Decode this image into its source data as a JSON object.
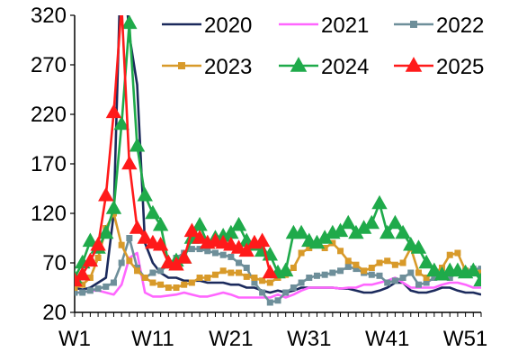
{
  "chart_data": {
    "type": "line",
    "title": "",
    "xlabel": "",
    "ylabel": "",
    "ylim": [
      20,
      320
    ],
    "yticks": [
      20,
      70,
      120,
      170,
      220,
      270,
      320
    ],
    "xticks": [
      "W1",
      "W11",
      "W21",
      "W31",
      "W41",
      "W51"
    ],
    "xtick_weeks": [
      1,
      11,
      21,
      31,
      41,
      51
    ],
    "week_range": [
      1,
      53
    ],
    "grid": false,
    "legend_position": "top-right",
    "series": [
      {
        "name": "2020",
        "color": "#1b2a5c",
        "marker": "none",
        "x": [
          1,
          2,
          3,
          4,
          5,
          6,
          7,
          8,
          9,
          10,
          11,
          12,
          13,
          14,
          15,
          16,
          17,
          18,
          19,
          20,
          21,
          22,
          23,
          24,
          25,
          26,
          27,
          28,
          29,
          30,
          31,
          32,
          33,
          34,
          35,
          36,
          37,
          38,
          39,
          40,
          41,
          42,
          43,
          44,
          45,
          46,
          47,
          48,
          49,
          50,
          51,
          52,
          53
        ],
        "y": [
          45,
          43,
          45,
          50,
          55,
          120,
          400,
          300,
          250,
          90,
          70,
          60,
          55,
          55,
          52,
          52,
          52,
          50,
          50,
          50,
          48,
          48,
          45,
          45,
          42,
          40,
          42,
          40,
          42,
          45,
          45,
          45,
          45,
          45,
          44,
          44,
          42,
          40,
          40,
          42,
          45,
          50,
          50,
          42,
          40,
          40,
          42,
          45,
          45,
          42,
          40,
          40,
          38
        ]
      },
      {
        "name": "2021",
        "color": "#ff66ff",
        "marker": "none",
        "x": [
          1,
          2,
          3,
          4,
          5,
          6,
          7,
          8,
          9,
          10,
          11,
          12,
          13,
          14,
          15,
          16,
          17,
          18,
          19,
          20,
          21,
          22,
          23,
          24,
          25,
          26,
          27,
          28,
          29,
          30,
          31,
          32,
          33,
          34,
          35,
          36,
          37,
          38,
          39,
          40,
          41,
          42,
          43,
          44,
          45,
          46,
          47,
          48,
          49,
          50,
          51,
          52,
          53
        ],
        "y": [
          40,
          40,
          42,
          42,
          40,
          38,
          48,
          75,
          80,
          40,
          36,
          36,
          37,
          38,
          40,
          38,
          36,
          36,
          38,
          40,
          38,
          35,
          35,
          35,
          35,
          35,
          38,
          35,
          38,
          42,
          45,
          45,
          45,
          45,
          44,
          45,
          45,
          48,
          48,
          50,
          52,
          55,
          50,
          45,
          45,
          45,
          45,
          48,
          50,
          50,
          48,
          45,
          45
        ]
      },
      {
        "name": "2022",
        "color": "#6e8f9a",
        "marker": "square",
        "x": [
          1,
          2,
          3,
          4,
          5,
          6,
          7,
          8,
          9,
          10,
          11,
          12,
          13,
          14,
          15,
          16,
          17,
          18,
          19,
          20,
          21,
          22,
          23,
          24,
          25,
          26,
          27,
          28,
          29,
          30,
          31,
          32,
          33,
          34,
          35,
          36,
          37,
          38,
          39,
          40,
          41,
          42,
          43,
          44,
          45,
          46,
          47,
          48,
          49,
          50,
          51,
          52,
          53
        ],
        "y": [
          40,
          40,
          42,
          44,
          46,
          50,
          70,
          95,
          65,
          55,
          60,
          62,
          68,
          75,
          80,
          84,
          84,
          82,
          80,
          78,
          76,
          70,
          65,
          50,
          40,
          30,
          32,
          40,
          45,
          50,
          55,
          57,
          58,
          60,
          62,
          66,
          64,
          60,
          58,
          57,
          50,
          52,
          55,
          60,
          48,
          50,
          55,
          58,
          55,
          60,
          62,
          64,
          64
        ]
      },
      {
        "name": "2023",
        "color": "#d89a2a",
        "marker": "square",
        "x": [
          1,
          2,
          3,
          4,
          5,
          6,
          7,
          8,
          9,
          10,
          11,
          12,
          13,
          14,
          15,
          16,
          17,
          18,
          19,
          20,
          21,
          22,
          23,
          24,
          25,
          26,
          27,
          28,
          29,
          30,
          31,
          32,
          33,
          34,
          35,
          36,
          37,
          38,
          39,
          40,
          41,
          42,
          43,
          44,
          45,
          46,
          47,
          48,
          49,
          50,
          51,
          52,
          53
        ],
        "y": [
          45,
          48,
          55,
          75,
          105,
          120,
          88,
          72,
          62,
          55,
          50,
          48,
          45,
          45,
          48,
          50,
          55,
          55,
          58,
          62,
          60,
          60,
          56,
          55,
          52,
          50,
          55,
          58,
          65,
          80,
          85,
          88,
          85,
          90,
          82,
          72,
          68,
          62,
          65,
          70,
          72,
          68,
          70,
          85,
          60,
          55,
          60,
          65,
          78,
          80,
          62,
          60,
          60
        ]
      },
      {
        "name": "2024",
        "color": "#1faa4a",
        "marker": "triangle",
        "x": [
          1,
          2,
          3,
          4,
          5,
          6,
          7,
          8,
          9,
          10,
          11,
          12,
          13,
          14,
          15,
          16,
          17,
          18,
          19,
          20,
          21,
          22,
          23,
          24,
          25,
          26,
          27,
          28,
          29,
          30,
          31,
          32,
          33,
          34,
          35,
          36,
          37,
          38,
          39,
          40,
          41,
          42,
          43,
          44,
          45,
          46,
          47,
          48,
          49,
          50,
          51,
          52,
          53
        ],
        "y": [
          55,
          70,
          92,
          85,
          100,
          125,
          210,
          312,
          188,
          138,
          120,
          108,
          70,
          72,
          75,
          95,
          108,
          90,
          95,
          97,
          100,
          108,
          92,
          88,
          82,
          78,
          60,
          62,
          100,
          100,
          92,
          90,
          95,
          100,
          102,
          110,
          100,
          105,
          110,
          130,
          100,
          110,
          100,
          88,
          85,
          70,
          62,
          58,
          62,
          62,
          60,
          62,
          52
        ]
      },
      {
        "name": "2025",
        "color": "#ff1a1a",
        "marker": "triangle",
        "x": [
          1,
          2,
          3,
          4,
          5,
          6,
          7,
          8,
          9,
          10,
          11,
          12,
          13,
          14,
          15,
          16,
          17,
          18,
          19,
          20,
          21,
          22,
          23,
          24,
          25,
          26
        ],
        "y": [
          52,
          58,
          72,
          88,
          138,
          222,
          330,
          170,
          105,
          95,
          90,
          88,
          70,
          68,
          75,
          102,
          95,
          90,
          92,
          90,
          88,
          85,
          82,
          90,
          92,
          60
        ]
      }
    ]
  }
}
